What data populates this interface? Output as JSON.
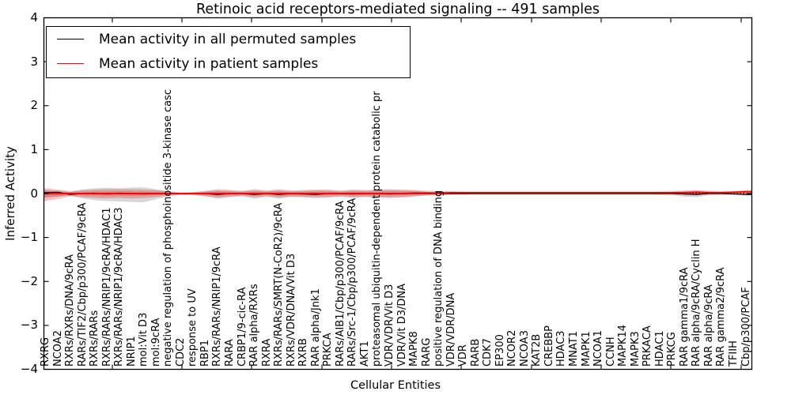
{
  "title": "Retinoic acid receptors-mediated signaling -- 491 samples",
  "legend": {
    "items": [
      {
        "label": "Mean activity in all permuted samples",
        "color": "#000000"
      },
      {
        "label": "Mean activity in patient samples",
        "color": "#ff0000"
      }
    ]
  },
  "chart_data": {
    "type": "line",
    "title": "Retinoic acid receptors-mediated signaling -- 491 samples",
    "xlabel": "Cellular Entities",
    "ylabel": "Inferred Activity",
    "ylim": [
      -4,
      4
    ],
    "yticks": [
      4,
      3,
      2,
      1,
      0,
      -1,
      -2,
      -3,
      -4
    ],
    "grid": false,
    "legend_position": "upper left",
    "zero_line": true,
    "categories": [
      "RXRG",
      "NCOA2",
      "RXRs/RXRs/DNA/9cRA",
      "RARs/TIF2/Cbp/p300/PCAF/9cRA",
      "RXRs/RARs",
      "RXRs/RARs/NRIP1/9cRA/HDAC1",
      "RXRs/RARs/NRIP1/9cRA/HDAC3",
      "NRIP1",
      "mol:Vit D3",
      "mol:9cRA",
      "negative regulation of phosphoinositide 3-kinase casc",
      "CDC2",
      "response to UV",
      "RBP1",
      "RXRs/RARs/NRIP1/9cRA",
      "RARA",
      "CRBP1/9-cic-RA",
      "RAR alpha/RXRs",
      "RXRA",
      "RXRs/RARs/SMRT(N-CoR2)/9cRA",
      "RXRs/VDR/DNA/Vit D3",
      "RXRB",
      "RAR alpha/Jnk1",
      "PRKCA",
      "RARs/AIB1/Cbp/p300/PCAF/9cRA",
      "RARs/Src-1/Cbp/p300/PCAF/9cRA",
      "AKT1",
      "proteasomal ubiquitin-dependent protein catabolic pr",
      "VDR/VDR/Vit D3",
      "VDR/Vit D3/DNA",
      "MAPK8",
      "RARG",
      "positive regulation of DNA binding",
      "VDR/VDR/DNA",
      "VDR",
      "RARB",
      "CDK7",
      "EP300",
      "NCOR2",
      "NCOA3",
      "KAT2B",
      "CREBBP",
      "HDAC3",
      "MNAT1",
      "MAPK1",
      "NCOA1",
      "CCNH",
      "MAPK14",
      "MAPK3",
      "PRKACA",
      "HDAC1",
      "PRKCG",
      "RAR gamma1/9cRA",
      "RAR alpha/9cRA/Cyclin H",
      "RAR alpha/9cRA",
      "RAR gamma2/9cRA",
      "TFIIH",
      "Cbp/p300/PCAF"
    ],
    "series": [
      {
        "name": "Mean activity in all permuted samples",
        "color": "#000000",
        "values": [
          0.02,
          0.03,
          -0.02,
          0.0,
          0.01,
          -0.01,
          0.01,
          0.0,
          -0.01,
          0.0,
          0.0,
          -0.01,
          0.0,
          0.0,
          -0.02,
          0.0,
          0.0,
          -0.02,
          0.0,
          -0.02,
          0.0,
          -0.01,
          -0.02,
          0.0,
          0.0,
          -0.01,
          0.0,
          0.0,
          -0.01,
          0.0,
          0.0,
          0.0,
          0.0,
          0.0,
          0.0,
          0.0,
          0.0,
          0.0,
          0.0,
          0.0,
          0.0,
          0.0,
          0.0,
          0.0,
          0.0,
          0.0,
          0.0,
          0.0,
          0.0,
          0.0,
          0.0,
          0.0,
          -0.01,
          -0.02,
          0.0,
          0.0,
          -0.01,
          -0.02
        ]
      },
      {
        "name": "Mean activity in patient samples",
        "color": "#ff0000",
        "values": [
          0.0,
          0.0,
          0.0,
          0.0,
          0.0,
          0.0,
          0.0,
          0.0,
          0.0,
          0.0,
          0.0,
          0.0,
          0.0,
          0.0,
          0.0,
          0.0,
          0.0,
          0.0,
          0.0,
          0.0,
          0.0,
          0.0,
          0.0,
          0.0,
          0.0,
          0.0,
          0.0,
          0.0,
          0.0,
          0.0,
          0.01,
          0.01,
          0.01,
          0.02,
          0.02,
          0.02,
          0.02,
          0.02,
          0.02,
          0.02,
          0.02,
          0.02,
          0.02,
          0.02,
          0.02,
          0.02,
          0.02,
          0.02,
          0.02,
          0.02,
          0.02,
          0.02,
          0.02,
          0.03,
          0.02,
          0.02,
          0.03,
          0.04
        ]
      }
    ],
    "bands": [
      {
        "name": "permuted-std-band",
        "color": "rgba(130,130,130,0.32)",
        "upper": [
          0.08,
          0.07,
          0.04,
          0.09,
          0.12,
          0.13,
          0.12,
          0.14,
          0.14,
          0.1,
          0.05,
          0.02,
          0.03,
          0.05,
          0.07,
          0.06,
          0.05,
          0.07,
          0.05,
          0.07,
          0.05,
          0.06,
          0.07,
          0.07,
          0.05,
          0.07,
          0.06,
          0.07,
          0.08,
          0.07,
          0.06,
          0.04,
          0.03,
          0.03,
          0.03,
          0.03,
          0.03,
          0.03,
          0.03,
          0.03,
          0.03,
          0.03,
          0.03,
          0.03,
          0.03,
          0.03,
          0.03,
          0.03,
          0.03,
          0.03,
          0.03,
          0.03,
          0.04,
          0.05,
          0.03,
          0.03,
          0.03,
          0.03
        ],
        "lower": [
          -0.09,
          -0.07,
          -0.05,
          -0.11,
          -0.15,
          -0.17,
          -0.18,
          -0.19,
          -0.2,
          -0.13,
          -0.06,
          -0.03,
          -0.04,
          -0.06,
          -0.12,
          -0.08,
          -0.06,
          -0.12,
          -0.07,
          -0.12,
          -0.07,
          -0.08,
          -0.11,
          -0.09,
          -0.07,
          -0.1,
          -0.08,
          -0.09,
          -0.1,
          -0.09,
          -0.07,
          -0.05,
          -0.04,
          -0.03,
          -0.03,
          -0.03,
          -0.03,
          -0.03,
          -0.03,
          -0.03,
          -0.03,
          -0.03,
          -0.03,
          -0.03,
          -0.03,
          -0.03,
          -0.03,
          -0.03,
          -0.03,
          -0.03,
          -0.04,
          -0.04,
          -0.07,
          -0.08,
          -0.04,
          -0.03,
          -0.03,
          -0.05
        ]
      },
      {
        "name": "patient-std-band",
        "color": "rgba(225,45,45,0.30)",
        "upper": [
          0.12,
          0.09,
          0.05,
          0.08,
          0.09,
          0.1,
          0.1,
          0.1,
          0.09,
          0.08,
          0.05,
          0.02,
          0.03,
          0.06,
          0.1,
          0.08,
          0.06,
          0.1,
          0.07,
          0.1,
          0.07,
          0.08,
          0.09,
          0.09,
          0.07,
          0.09,
          0.08,
          0.09,
          0.1,
          0.09,
          0.08,
          0.06,
          0.05,
          0.05,
          0.04,
          0.04,
          0.04,
          0.04,
          0.04,
          0.04,
          0.04,
          0.04,
          0.04,
          0.04,
          0.04,
          0.04,
          0.04,
          0.04,
          0.04,
          0.04,
          0.04,
          0.05,
          0.07,
          0.08,
          0.06,
          0.05,
          0.05,
          0.08
        ],
        "lower": [
          -0.17,
          -0.12,
          -0.06,
          -0.08,
          -0.1,
          -0.11,
          -0.1,
          -0.11,
          -0.1,
          -0.08,
          -0.05,
          -0.02,
          -0.03,
          -0.06,
          -0.09,
          -0.07,
          -0.05,
          -0.08,
          -0.06,
          -0.09,
          -0.07,
          -0.08,
          -0.08,
          -0.08,
          -0.06,
          -0.08,
          -0.07,
          -0.08,
          -0.09,
          -0.08,
          -0.06,
          -0.04,
          -0.03,
          -0.02,
          -0.02,
          -0.01,
          -0.01,
          -0.01,
          -0.01,
          -0.01,
          -0.01,
          -0.01,
          -0.01,
          -0.01,
          -0.01,
          -0.01,
          -0.01,
          -0.01,
          -0.01,
          -0.01,
          -0.01,
          -0.01,
          -0.04,
          -0.04,
          -0.01,
          -0.01,
          0.0,
          0.01
        ]
      }
    ]
  }
}
